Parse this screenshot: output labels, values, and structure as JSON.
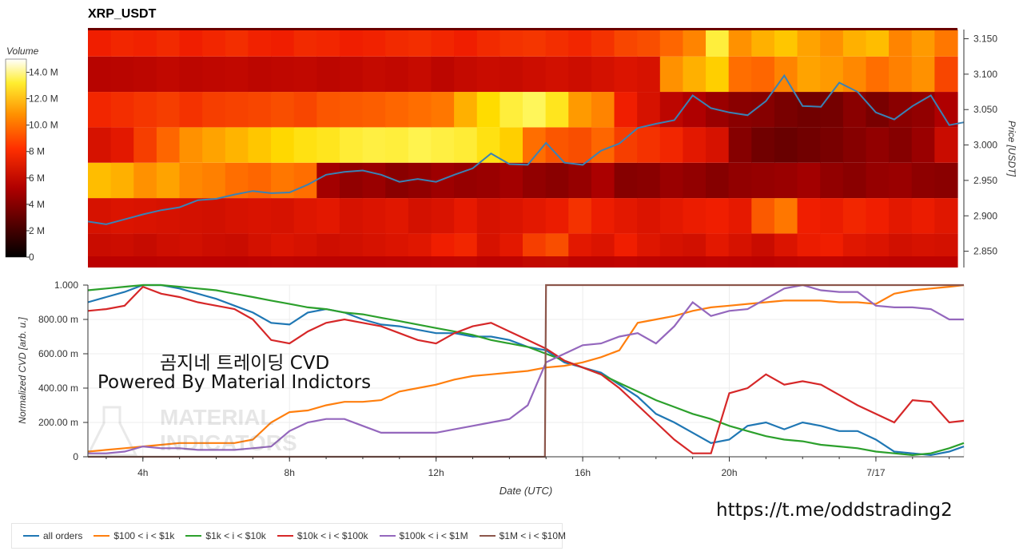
{
  "title": "XRP_USDT",
  "url_text": "https://t.me/oddstrading2",
  "overlay": {
    "line1": "곰지네 트레이딩 CVD",
    "line2": "Powered By Material Indictors"
  },
  "watermark": {
    "line1": "MATERIAL",
    "line2": "INDICATORS"
  },
  "colors": {
    "all_orders": "#1f77b4",
    "s100_1k": "#ff7f0e",
    "s1k_10k": "#2ca02c",
    "s10k_100k": "#d62728",
    "s100k_1M": "#9467bd",
    "s1M_10M": "#8c564b",
    "price_line": "#3a82b5"
  },
  "legend": [
    {
      "label": "all orders",
      "color": "#1f77b4"
    },
    {
      "label": "$100 < i < $1k",
      "color": "#ff7f0e"
    },
    {
      "label": "$1k < i < $10k",
      "color": "#2ca02c"
    },
    {
      "label": "$10k < i < $100k",
      "color": "#d62728"
    },
    {
      "label": "$100k < i < $1M",
      "color": "#9467bd"
    },
    {
      "label": "$1M < i < $10M",
      "color": "#8c564b"
    }
  ],
  "chart_data": [
    {
      "type": "heatmap",
      "title": "XRP_USDT",
      "colorbar": {
        "title": "Volume",
        "ticks": [
          "0",
          "2 M",
          "4 M",
          "6 M",
          "8 M",
          "10.0 M",
          "12.0 M",
          "14.0 M"
        ],
        "range": [
          0,
          15
        ]
      },
      "y_axis": {
        "label": "Price [USDT]",
        "ticks": [
          "2.850",
          "2.900",
          "2.950",
          "3.000",
          "3.050",
          "3.100",
          "3.150"
        ],
        "range": [
          2.827,
          3.163
        ]
      },
      "x_range_hours": [
        2.5,
        26.4
      ],
      "price_levels": [
        2.85,
        2.9,
        2.95,
        3.0,
        3.05,
        3.1,
        3.15
      ],
      "volume_rows_M": [
        {
          "level": 2.85,
          "values": [
            5.5,
            5.6,
            5.4,
            5.7,
            5.8,
            5.6,
            5.5,
            5.9,
            6.2,
            6.0,
            5.7,
            5.8,
            6.0,
            6.2,
            6.4,
            7.0,
            7.2,
            6.0,
            6.5,
            7.8,
            8.2,
            6.5,
            6.2,
            7.0,
            6.3,
            6.0,
            5.8,
            6.5,
            6.0,
            5.5,
            6.2,
            6.8,
            7.0,
            6.4,
            6.2,
            5.8,
            6.0,
            5.9
          ]
        },
        {
          "level": 2.9,
          "values": [
            6.0,
            6.2,
            6.1,
            6.0,
            5.9,
            5.8,
            6.0,
            6.1,
            6.0,
            6.3,
            6.5,
            6.0,
            6.2,
            6.4,
            5.9,
            6.1,
            6.6,
            6.0,
            6.2,
            6.5,
            6.8,
            7.5,
            6.9,
            6.5,
            6.2,
            6.5,
            6.8,
            7.0,
            6.6,
            8.5,
            9.2,
            7.0,
            6.8,
            7.2,
            7.0,
            6.5,
            6.8,
            6.4
          ]
        },
        {
          "level": 2.95,
          "values": [
            10.8,
            10.5,
            9.8,
            10.2,
            9.6,
            9.4,
            9.0,
            8.8,
            9.2,
            9.0,
            4.2,
            3.8,
            4.0,
            3.6,
            3.8,
            4.1,
            3.9,
            4.0,
            4.2,
            3.8,
            3.6,
            3.9,
            4.4,
            3.5,
            3.6,
            4.0,
            3.8,
            3.5,
            3.8,
            3.9,
            4.0,
            4.2,
            3.8,
            3.6,
            3.9,
            4.0,
            3.7,
            3.6
          ]
        },
        {
          "level": 3.0,
          "values": [
            6.0,
            6.5,
            7.8,
            8.8,
            9.8,
            10.2,
            10.6,
            11.0,
            11.4,
            11.8,
            12.0,
            12.4,
            12.6,
            12.5,
            12.8,
            12.6,
            12.4,
            11.8,
            11.2,
            9.0,
            8.4,
            8.2,
            8.8,
            7.8,
            7.5,
            7.2,
            6.5,
            6.0,
            3.5,
            3.0,
            2.8,
            3.0,
            3.2,
            3.5,
            3.8,
            3.5,
            4.0,
            5.5
          ]
        },
        {
          "level": 3.05,
          "values": [
            7.2,
            7.4,
            7.6,
            7.8,
            7.5,
            7.8,
            7.9,
            8.0,
            8.2,
            8.0,
            8.4,
            8.5,
            8.6,
            8.8,
            9.0,
            9.2,
            10.5,
            11.5,
            12.5,
            13.0,
            12.0,
            10.0,
            9.5,
            7.0,
            6.0,
            5.0,
            4.5,
            4.0,
            3.6,
            3.5,
            3.2,
            3.0,
            3.1,
            3.6,
            3.2,
            3.6,
            3.8,
            4.5
          ]
        },
        {
          "level": 3.1,
          "values": [
            4.8,
            4.9,
            5.0,
            5.2,
            5.0,
            5.1,
            5.2,
            5.0,
            5.1,
            5.2,
            5.0,
            5.1,
            5.3,
            5.2,
            5.4,
            5.0,
            5.3,
            5.5,
            5.4,
            5.6,
            5.8,
            5.6,
            5.9,
            6.2,
            6.0,
            9.8,
            10.5,
            11.2,
            9.0,
            8.8,
            9.5,
            10.2,
            10.0,
            9.6,
            9.0,
            9.4,
            9.8,
            8.0
          ]
        },
        {
          "level": 3.15,
          "values": [
            7.0,
            7.2,
            7.1,
            7.3,
            7.0,
            7.2,
            7.4,
            7.1,
            7.0,
            7.3,
            7.2,
            7.0,
            7.1,
            7.3,
            7.4,
            7.2,
            7.0,
            7.3,
            7.5,
            7.6,
            7.4,
            7.2,
            7.5,
            8.0,
            8.2,
            8.8,
            9.5,
            12.5,
            9.8,
            10.5,
            11.0,
            10.2,
            9.8,
            10.5,
            10.8,
            9.5,
            10.0,
            9.2
          ]
        }
      ],
      "price_series": {
        "x": [
          2.5,
          3.0,
          3.5,
          4.0,
          4.5,
          5.0,
          5.5,
          6.0,
          6.5,
          7.0,
          7.5,
          8.0,
          8.5,
          9.0,
          9.5,
          10.0,
          10.5,
          11.0,
          11.5,
          12.0,
          12.5,
          13.0,
          13.5,
          14.0,
          14.5,
          15.0,
          15.5,
          16.0,
          16.5,
          17.0,
          17.5,
          18.0,
          18.5,
          19.0,
          19.5,
          20.0,
          20.5,
          21.0,
          21.5,
          22.0,
          22.5,
          23.0,
          23.5,
          24.0,
          24.5,
          25.0,
          25.5,
          26.0,
          26.4
        ],
        "y": [
          2.892,
          2.888,
          2.895,
          2.902,
          2.908,
          2.912,
          2.922,
          2.924,
          2.93,
          2.935,
          2.932,
          2.933,
          2.944,
          2.958,
          2.962,
          2.964,
          2.958,
          2.948,
          2.952,
          2.948,
          2.958,
          2.967,
          2.988,
          2.973,
          2.972,
          3.003,
          2.975,
          2.972,
          2.992,
          3.002,
          3.024,
          3.03,
          3.035,
          3.07,
          3.052,
          3.046,
          3.042,
          3.062,
          3.098,
          3.055,
          3.054,
          3.088,
          3.075,
          3.046,
          3.036,
          3.055,
          3.07,
          3.028,
          3.032
        ]
      }
    },
    {
      "type": "line",
      "ylabel": "Normalized CVD [arb. u.]",
      "xlabel": "Date (UTC)",
      "ylim": [
        0,
        1
      ],
      "x_range_hours": [
        2.5,
        26.4
      ],
      "y_ticks": [
        "0",
        "200.00 m",
        "400.00 m",
        "600.00 m",
        "800.00 m",
        "1.000"
      ],
      "x_ticks": [
        {
          "label": "4h",
          "hour": 4
        },
        {
          "label": "8h",
          "hour": 8
        },
        {
          "label": "12h",
          "hour": 12
        },
        {
          "label": "16h",
          "hour": 16
        },
        {
          "label": "20h",
          "hour": 20
        },
        {
          "label": "7/17",
          "hour": 24
        }
      ],
      "x": [
        2.5,
        3.0,
        3.5,
        4.0,
        4.5,
        5.0,
        5.5,
        6.0,
        6.5,
        7.0,
        7.5,
        8.0,
        8.5,
        9.0,
        9.5,
        10.0,
        10.5,
        11.0,
        11.5,
        12.0,
        12.5,
        13.0,
        13.5,
        14.0,
        14.5,
        15.0,
        15.5,
        16.0,
        16.5,
        17.0,
        17.5,
        18.0,
        18.5,
        19.0,
        19.5,
        20.0,
        20.5,
        21.0,
        21.5,
        22.0,
        22.5,
        23.0,
        23.5,
        24.0,
        24.5,
        25.0,
        25.5,
        26.0,
        26.4
      ],
      "series": [
        {
          "name": "all orders",
          "values": [
            0.9,
            0.93,
            0.96,
            1.0,
            1.0,
            0.98,
            0.95,
            0.92,
            0.88,
            0.84,
            0.78,
            0.77,
            0.84,
            0.86,
            0.84,
            0.8,
            0.77,
            0.76,
            0.74,
            0.72,
            0.72,
            0.7,
            0.7,
            0.68,
            0.64,
            0.62,
            0.55,
            0.52,
            0.49,
            0.42,
            0.35,
            0.25,
            0.2,
            0.14,
            0.08,
            0.1,
            0.18,
            0.2,
            0.16,
            0.2,
            0.18,
            0.15,
            0.15,
            0.1,
            0.03,
            0.02,
            0.01,
            0.03,
            0.06
          ]
        },
        {
          "name": "$100 < i < $1k",
          "values": [
            0.03,
            0.04,
            0.05,
            0.06,
            0.07,
            0.08,
            0.08,
            0.08,
            0.08,
            0.1,
            0.2,
            0.26,
            0.27,
            0.3,
            0.32,
            0.32,
            0.33,
            0.38,
            0.4,
            0.42,
            0.45,
            0.47,
            0.48,
            0.49,
            0.5,
            0.52,
            0.53,
            0.55,
            0.58,
            0.62,
            0.78,
            0.8,
            0.82,
            0.85,
            0.87,
            0.88,
            0.89,
            0.9,
            0.91,
            0.91,
            0.91,
            0.9,
            0.9,
            0.89,
            0.95,
            0.97,
            0.98,
            0.99,
            1.0
          ]
        },
        {
          "name": "$1k < i < $10k",
          "values": [
            0.97,
            0.98,
            0.99,
            1.0,
            1.0,
            0.99,
            0.98,
            0.97,
            0.95,
            0.93,
            0.91,
            0.89,
            0.87,
            0.86,
            0.84,
            0.83,
            0.81,
            0.79,
            0.77,
            0.75,
            0.73,
            0.71,
            0.68,
            0.66,
            0.64,
            0.6,
            0.56,
            0.52,
            0.48,
            0.43,
            0.38,
            0.33,
            0.29,
            0.25,
            0.22,
            0.18,
            0.15,
            0.12,
            0.1,
            0.09,
            0.07,
            0.06,
            0.05,
            0.03,
            0.02,
            0.01,
            0.02,
            0.05,
            0.08
          ]
        },
        {
          "name": "$10k < i < $100k",
          "values": [
            0.85,
            0.86,
            0.88,
            0.99,
            0.95,
            0.93,
            0.9,
            0.88,
            0.86,
            0.8,
            0.68,
            0.66,
            0.73,
            0.78,
            0.8,
            0.78,
            0.76,
            0.72,
            0.68,
            0.66,
            0.72,
            0.76,
            0.78,
            0.73,
            0.68,
            0.63,
            0.56,
            0.52,
            0.48,
            0.4,
            0.3,
            0.2,
            0.1,
            0.02,
            0.02,
            0.37,
            0.4,
            0.48,
            0.42,
            0.44,
            0.42,
            0.36,
            0.3,
            0.25,
            0.2,
            0.33,
            0.32,
            0.2,
            0.21
          ]
        },
        {
          "name": "$100k < i < $1M",
          "values": [
            0.02,
            0.02,
            0.03,
            0.06,
            0.05,
            0.05,
            0.04,
            0.04,
            0.04,
            0.05,
            0.06,
            0.15,
            0.2,
            0.22,
            0.22,
            0.18,
            0.14,
            0.14,
            0.14,
            0.14,
            0.16,
            0.18,
            0.2,
            0.22,
            0.3,
            0.55,
            0.6,
            0.65,
            0.66,
            0.7,
            0.72,
            0.66,
            0.76,
            0.9,
            0.82,
            0.85,
            0.86,
            0.92,
            0.98,
            1.0,
            0.97,
            0.96,
            0.96,
            0.88,
            0.87,
            0.87,
            0.86,
            0.8,
            0.8
          ]
        },
        {
          "name": "$1M < i < $10M",
          "values": [
            0.0,
            0.0,
            0.0,
            0.0,
            0.0,
            0.0,
            0.0,
            0.0,
            0.0,
            0.0,
            0.0,
            0.0,
            0.0,
            0.0,
            0.0,
            0.0,
            0.0,
            0.0,
            0.0,
            0.0,
            0.0,
            0.0,
            0.0,
            0.0,
            0.0,
            1.0,
            1.0,
            1.0,
            1.0,
            1.0,
            1.0,
            1.0,
            1.0,
            1.0,
            1.0,
            1.0,
            1.0,
            1.0,
            1.0,
            1.0,
            1.0,
            1.0,
            1.0,
            1.0,
            1.0,
            1.0,
            1.0,
            1.0,
            1.0
          ]
        }
      ]
    }
  ]
}
